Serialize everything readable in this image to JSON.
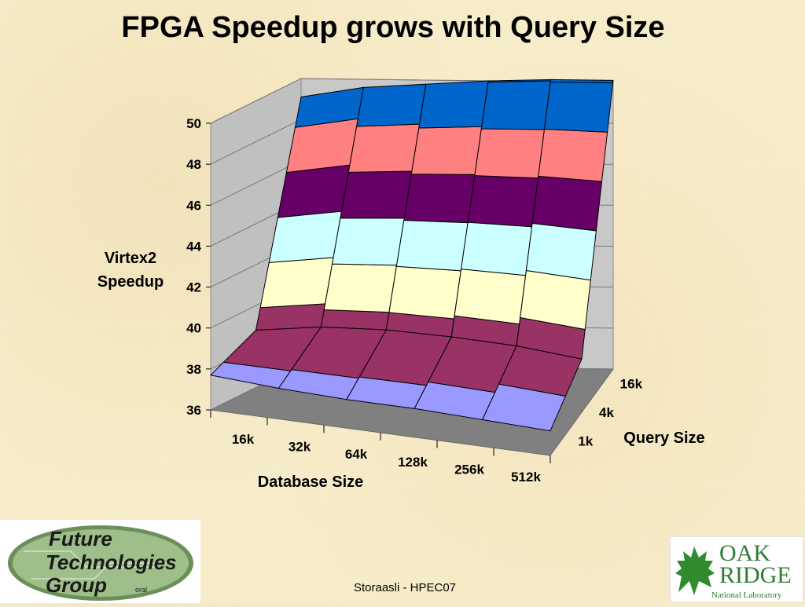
{
  "slide": {
    "title": "FPGA Speedup grows with Query Size",
    "footer": "Storaasli  - HPEC07"
  },
  "logos": {
    "left": {
      "line1": "Future",
      "line2": "Technologies",
      "line3": "Group",
      "tag": "oral"
    },
    "right": {
      "line1": "OAK",
      "line2": "RIDGE",
      "line3": "National Laboratory"
    }
  },
  "chart_data": {
    "type": "surface",
    "title": "",
    "xlabel": "Database Size",
    "zlabel": "Query Size",
    "ylabel": "Virtex2 Speedup",
    "x_categories": [
      "16k",
      "32k",
      "64k",
      "128k",
      "256k",
      "512k"
    ],
    "z_categories": [
      "1k",
      "4k",
      "16k"
    ],
    "y_ticks": [
      "36",
      "38",
      "40",
      "42",
      "44",
      "46",
      "48",
      "50"
    ],
    "ylim": [
      36,
      50
    ],
    "values": [
      [
        37.7,
        37.5,
        37.4,
        37.4,
        37.3,
        37.2
      ],
      [
        38.8,
        39.2,
        39.3,
        39.2,
        39.0,
        38.6
      ],
      [
        49.1,
        49.6,
        49.8,
        50.0,
        50.1,
        50.1
      ]
    ],
    "bands": [
      {
        "from": 36,
        "to": 38,
        "color": "#9999ff"
      },
      {
        "from": 38,
        "to": 40,
        "color": "#993366"
      },
      {
        "from": 40,
        "to": 42,
        "color": "#ffffcc"
      },
      {
        "from": 42,
        "to": 44,
        "color": "#ccffff"
      },
      {
        "from": 44,
        "to": 46,
        "color": "#660066"
      },
      {
        "from": 46,
        "to": 48,
        "color": "#ff8080"
      },
      {
        "from": 48,
        "to": 50,
        "color": "#0066cc"
      }
    ],
    "wall_color": "#c0c0c0",
    "floor_color": "#808080",
    "grid": true
  }
}
